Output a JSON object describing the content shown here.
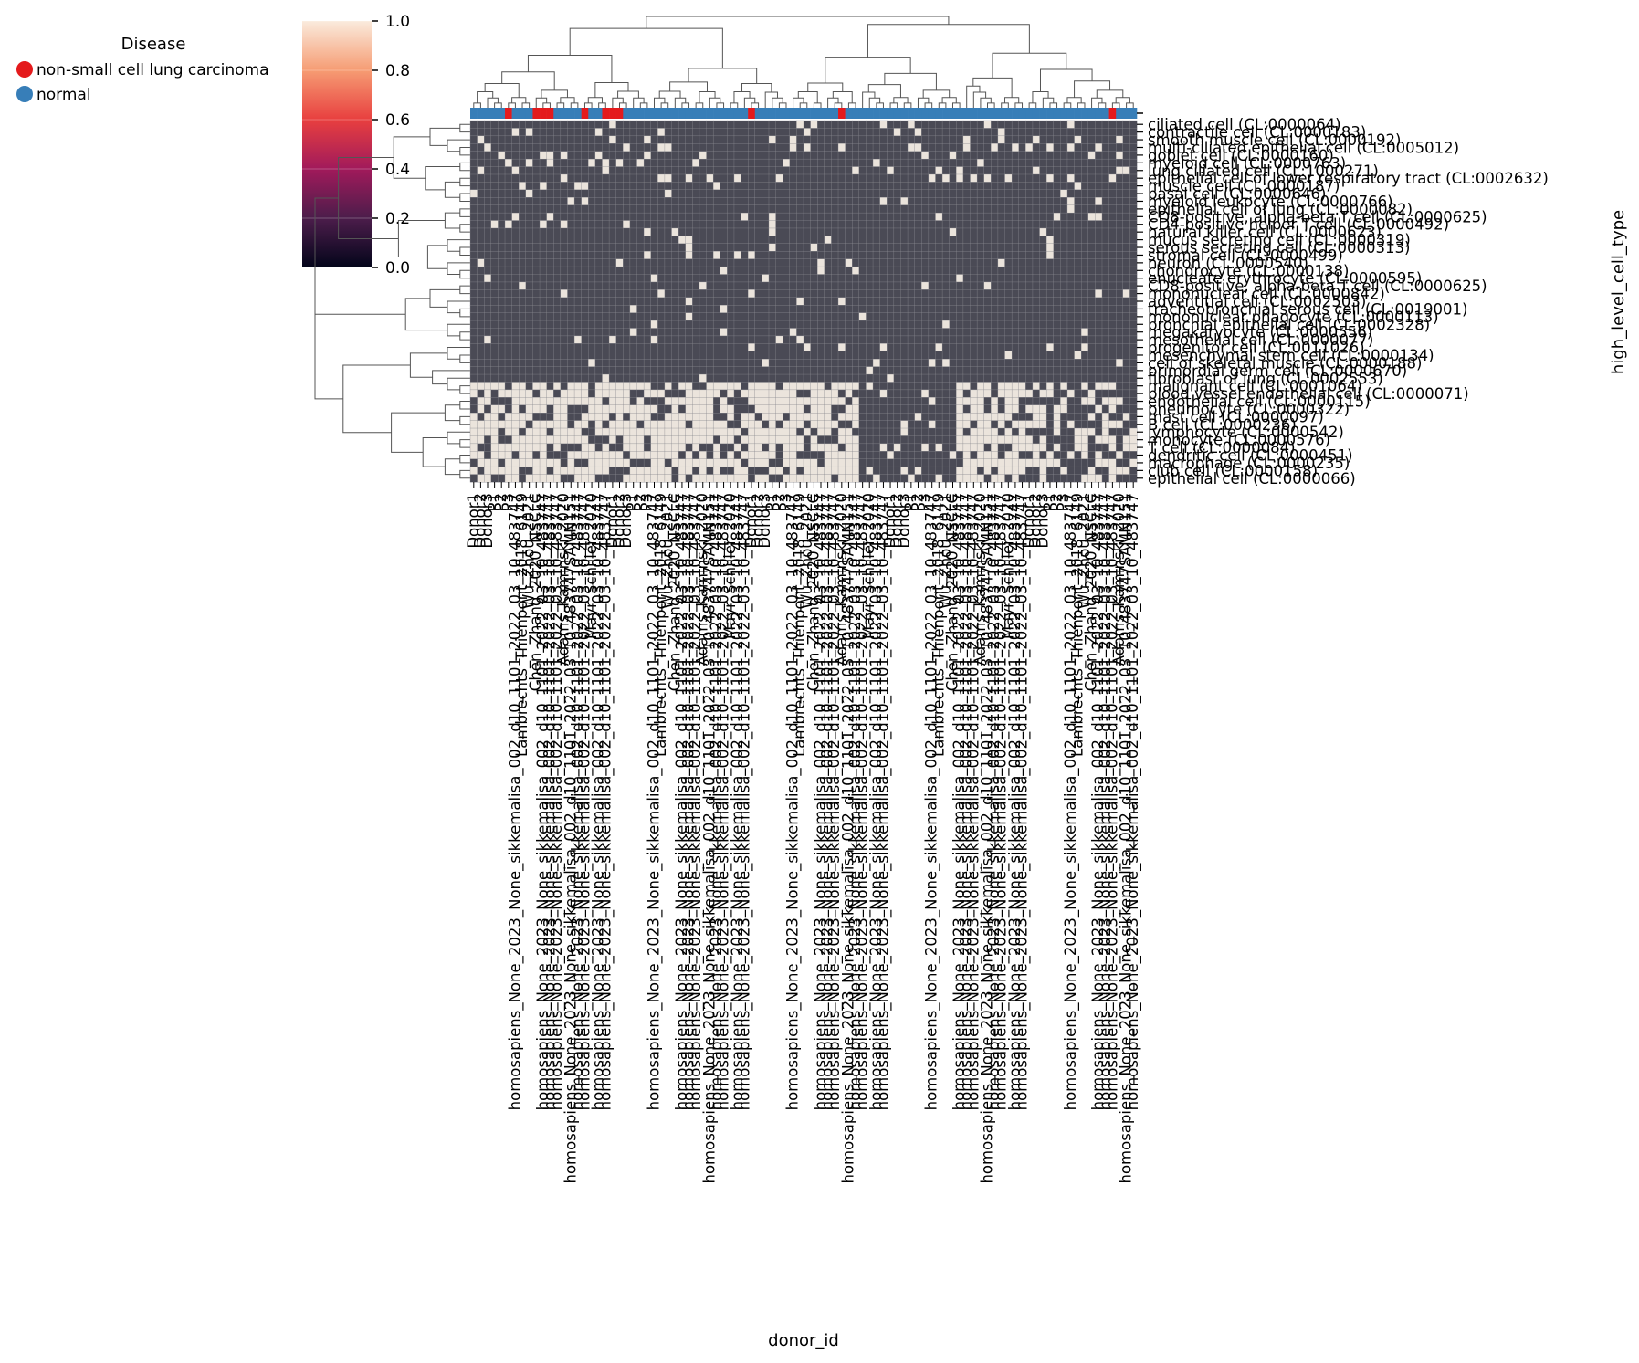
{
  "chart_data": {
    "type": "heatmap",
    "variant": "clustermap",
    "title": "",
    "xlabel": "donor_id",
    "ylabel": "high_level_cell_type",
    "value_range": [
      0,
      1
    ],
    "colorbar": {
      "ticks": [
        "0.0",
        "0.2",
        "0.4",
        "0.6",
        "0.8",
        "1.0"
      ],
      "stops": [
        "#03051a",
        "#4c1d4b",
        "#a11a5b",
        "#e83f3f",
        "#f69c73",
        "#faebdd"
      ]
    },
    "legend": {
      "title": "Disease",
      "placement": "top-left",
      "items": [
        {
          "label": "non-small cell lung carcinoma",
          "color": "#e41a1c"
        },
        {
          "label": "normal",
          "color": "#377eb8"
        }
      ]
    },
    "rows": [
      "ciliated cell (CL:0000064)",
      "contractile cell (CL:0000183)",
      "smooth muscle cell (CL:0000192)",
      "multi-ciliated epithelial cell (CL:0005012)",
      "goblet cell (CL:0000160)",
      "myeloid cell (CL:0000763)",
      "lung ciliated cell (CL:1000271)",
      "epithelial cell of lower respiratory tract (CL:0002632)",
      "muscle cell (CL:0000187)",
      "basal cell (CL:0000646)",
      "myeloid leukocyte (CL:0000766)",
      "epithelial cell of lung (CL:0000082)",
      "CD8-positive, alpha-beta T cell (CL:0000625)",
      "CD4-positive helper T cell (CL:0000492)",
      "natural killer cell (CL:0000623)",
      "mucus secreting cell (CL:0000319)",
      "serous secreting cell (CL:0000313)",
      "stromal cell (CL:0000499)",
      "neuron (CL:0000540)",
      "chondrocyte (CL:0000138)",
      "enucleate erythrocyte (CL:0000595)",
      "CD8-positive, alpha-beta T cell (CL:0000625)",
      "mononuclear cell (CL:0000842)",
      "adventitial cell (CL:0002503)",
      "tracheobronchial serous cell (CL:0019001)",
      "mononuclear phagocyte (CL:0000113)",
      "bronchial epithelial cell (CL:0002328)",
      "megakaryocyte (CL:0000556)",
      "mesothelial cell (CL:0000077)",
      "progenitor cell (CL:0011026)",
      "mesenchymal stem cell (CL:0000134)",
      "cell of skeletal muscle (CL:0000188)",
      "primordial germ cell (CL:0000670)",
      "fibroblast of lung (CL:0002553)",
      "malignant cell (CL:0001064)",
      "blood vessel endothelial cell (CL:0000071)",
      "endothelial cell (CL:0000115)",
      "pneumocyte (CL:0000322)",
      "mast cell (CL:0000097)",
      "B cell (CL:0000236)",
      "lymphocyte (CL:0000542)",
      "monocyte (CL:0000576)",
      "T cell (CL:0000084)",
      "dendritic cell (CL:0000451)",
      "macrophage (CL:0000235)",
      "club cell (CL:0000158)",
      "epithelial cell (CL:0000066)"
    ],
    "column_labels": [
      "Donor1",
      "Donor2",
      "Donor3",
      "P1",
      "P2",
      "P3",
      "homosapiens_None_2023_None_sikkemalisa_002_d10_1101_2022_03_10_483747",
      "Lambrechts_Thienpont_2018_6149",
      "Wu_Zhou_2021",
      "Chen_Zhang_2020_NSCLC",
      "homosapiens_None_2023_None_sikkemalisa_002_d10_1101_2022_03_10_483747",
      "homosapiens_None_2023_None_sikkemalisa_002_d10_1101_2022_03_10_483747",
      "homosapiens_None_2023_None_sikkemalisa_002_d10_1101_2022_03_10_483747",
      "Adams_Kaminski_2020",
      "homosapiens_None_2023_None_sikkemalisa_002_d10_1101_2022_03_10_483747SAMN151",
      "homosapiens_None_2023_None_sikkemalisa_002_d10_1101_2022_03_10_483747",
      "homosapiens_None_2023_None_sikkemalisa_002_d10_1101_2022_03_10_483747",
      "Mayr_Schiller_2020",
      "homosapiens_None_2023_None_sikkemalisa_002_d10_1101_2022_03_10_483747",
      "homosapiens_None_2023_None_sikkemalisa_002_d10_1101_2022_03_10_483747"
    ]
  }
}
